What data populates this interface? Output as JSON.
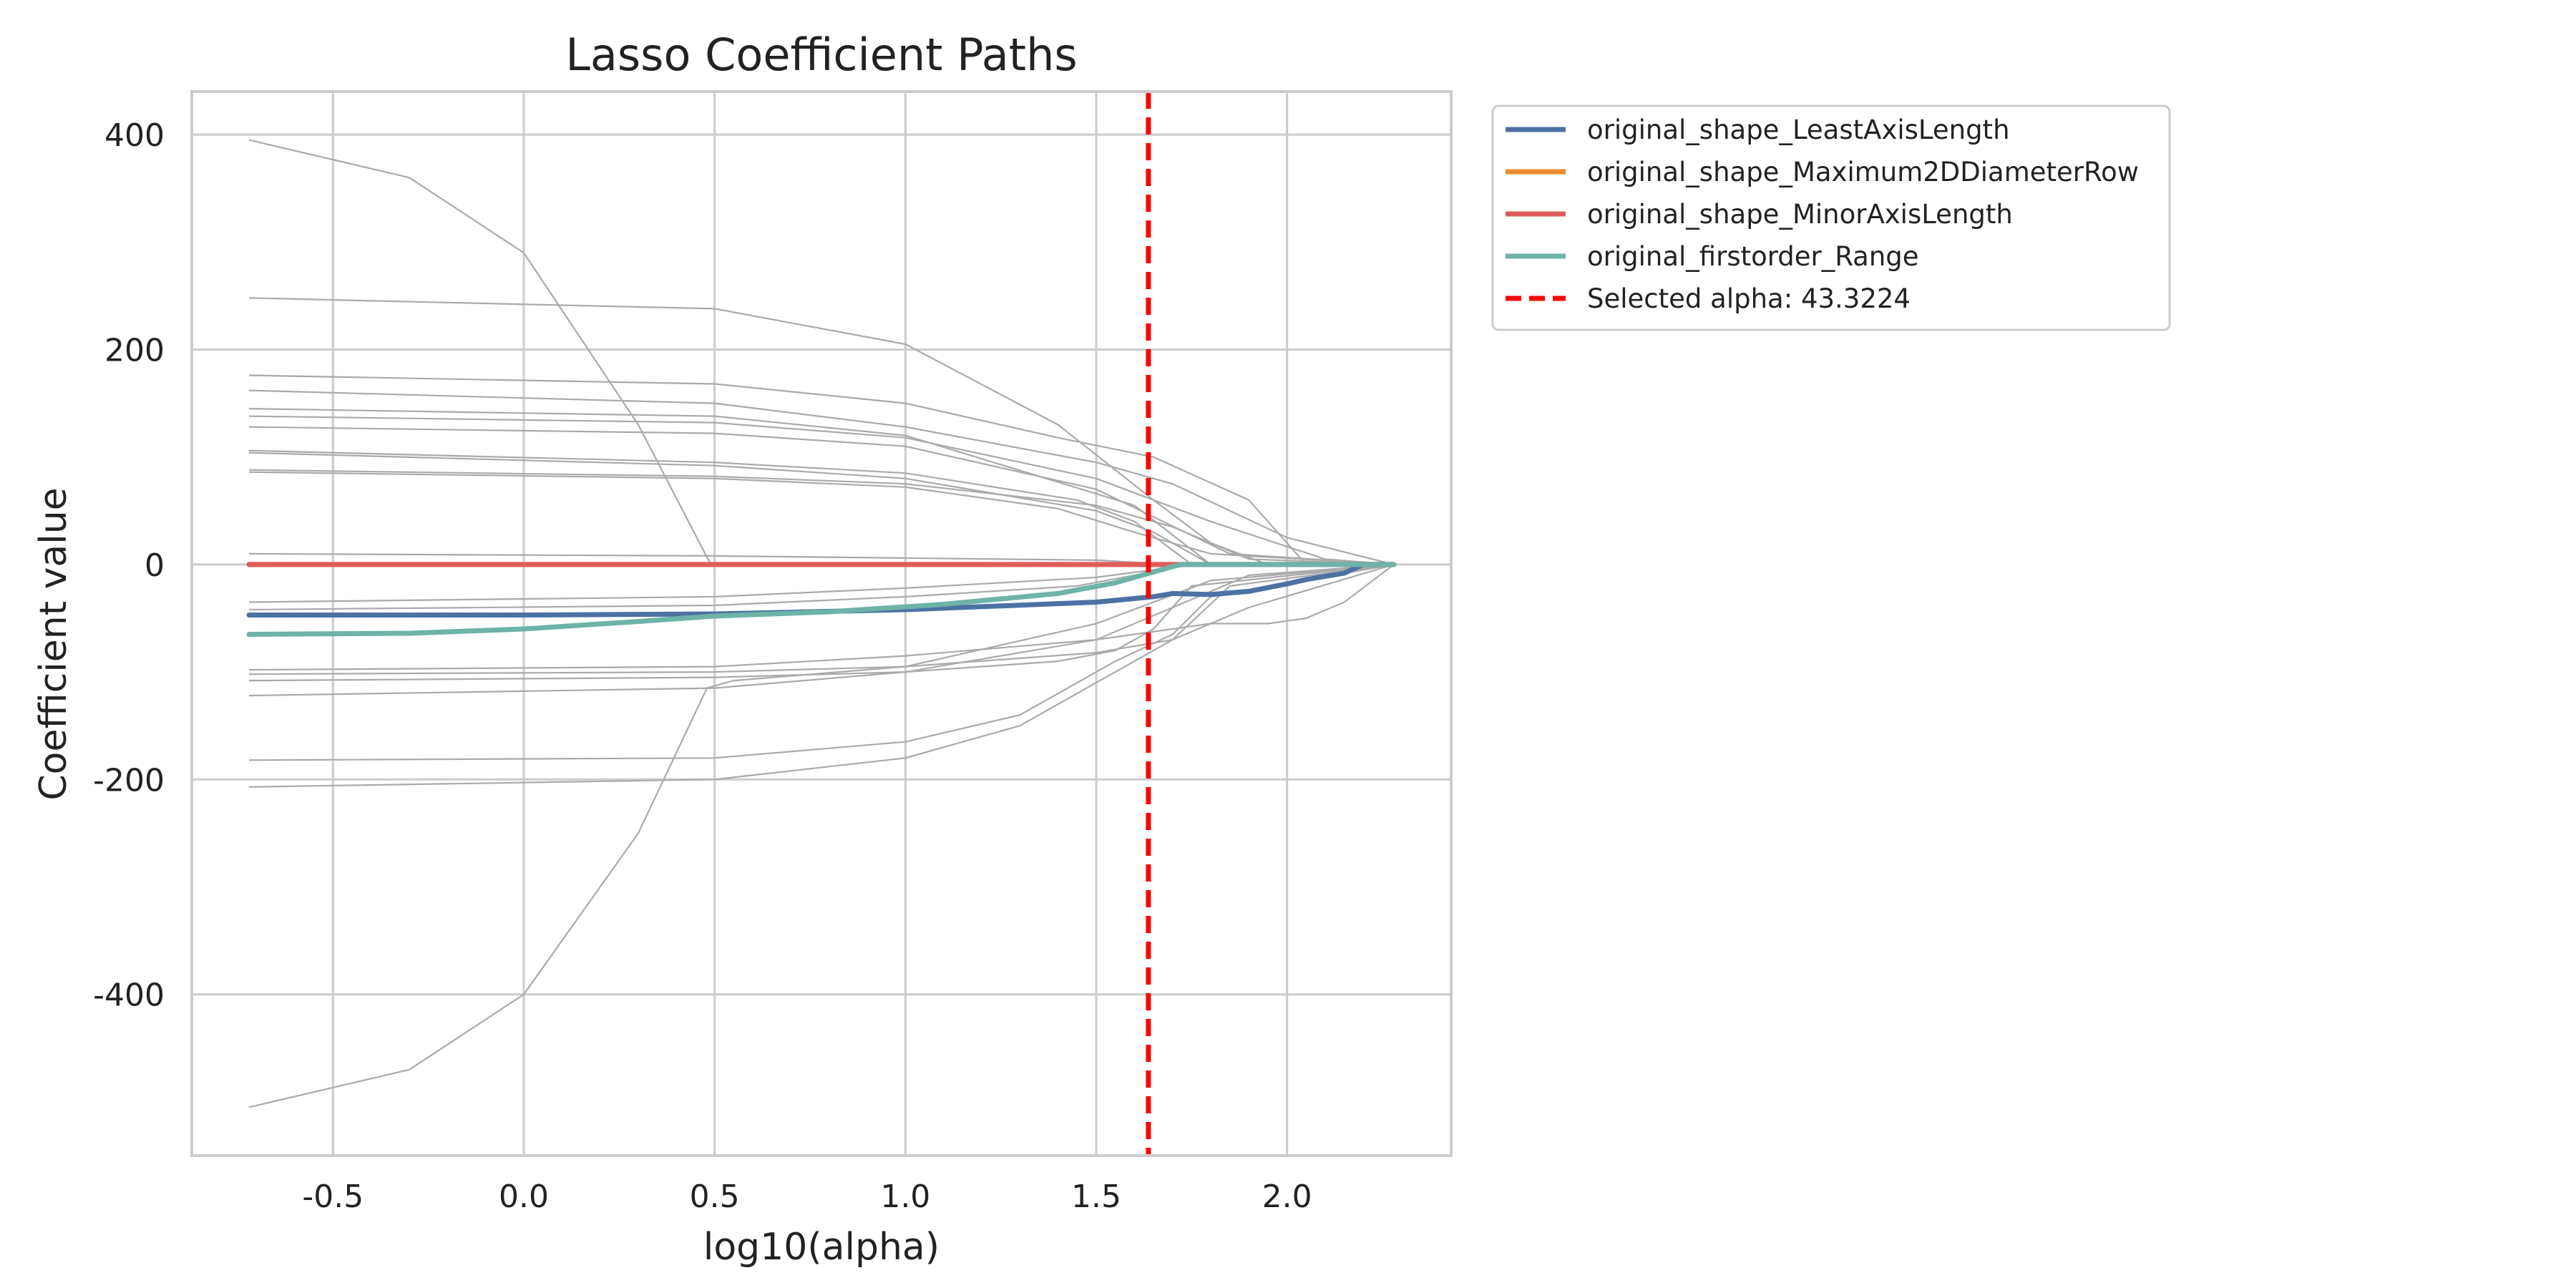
{
  "chart_data": {
    "type": "line",
    "title": "Lasso Coefficient Paths",
    "xlabel": "log10(alpha)",
    "ylabel": "Coefficient value",
    "xlim": [
      -0.87,
      2.43
    ],
    "ylim": [
      -550,
      440
    ],
    "xticks": [
      -0.5,
      0.0,
      0.5,
      1.0,
      1.5,
      2.0
    ],
    "xtick_labels": [
      "-0.5",
      "0.0",
      "0.5",
      "1.0",
      "1.5",
      "2.0"
    ],
    "yticks": [
      400,
      200,
      0,
      -200,
      -400
    ],
    "ytick_labels": [
      "400",
      "200",
      "0",
      "-200",
      "-400"
    ],
    "grid": true,
    "legend_position": "outside-top-right",
    "selected_alpha": {
      "label": "Selected alpha: 43.3224",
      "log10_alpha": 1.6367,
      "color": "#ff0000"
    },
    "series": [
      {
        "name": "original_shape_LeastAxisLength",
        "color": "#4c72a4",
        "highlight": true,
        "x": [
          -0.72,
          0.0,
          0.5,
          1.0,
          1.5,
          1.65,
          1.7,
          1.8,
          1.9,
          2.0,
          2.05,
          2.15,
          2.2,
          2.28
        ],
        "values": [
          -47,
          -47,
          -46,
          -42,
          -35,
          -30,
          -27,
          -28,
          -25,
          -18,
          -14,
          -8,
          0,
          0
        ]
      },
      {
        "name": "original_shape_Maximum2DDiameterRow",
        "color": "#ee8a2e",
        "highlight": true,
        "x": [
          -0.72,
          2.28
        ],
        "values": [
          0,
          0
        ]
      },
      {
        "name": "original_shape_MinorAxisLength",
        "color": "#df5c5c",
        "highlight": true,
        "x": [
          -0.72,
          2.28
        ],
        "values": [
          0,
          0
        ]
      },
      {
        "name": "original_firstorder_Range",
        "color": "#6db3a8",
        "highlight": true,
        "x": [
          -0.72,
          -0.3,
          0.0,
          0.3,
          0.5,
          0.8,
          1.1,
          1.4,
          1.55,
          1.65,
          1.72,
          2.28
        ],
        "values": [
          -65,
          -64,
          -60,
          -53,
          -48,
          -44,
          -37,
          -27,
          -17,
          -7,
          0,
          0
        ]
      }
    ],
    "background_paths": [
      {
        "x": [
          -0.72,
          -0.3,
          0.0,
          0.3,
          0.49,
          2.28
        ],
        "values": [
          395,
          360,
          290,
          130,
          0,
          0
        ]
      },
      {
        "x": [
          -0.72,
          -0.3,
          0.0,
          0.3,
          0.48,
          0.55,
          1.0,
          1.5,
          1.8,
          2.28
        ],
        "values": [
          -505,
          -470,
          -400,
          -250,
          -115,
          -108,
          -95,
          -55,
          -15,
          0
        ]
      },
      {
        "x": [
          -0.72,
          0.5,
          1.0,
          1.4,
          1.65,
          1.8,
          1.95,
          2.28
        ],
        "values": [
          248,
          238,
          205,
          130,
          60,
          20,
          0,
          0
        ]
      },
      {
        "x": [
          -0.72,
          0.5,
          1.0,
          1.4,
          1.65,
          1.9,
          2.05,
          2.28
        ],
        "values": [
          176,
          168,
          150,
          118,
          100,
          60,
          0,
          0
        ]
      },
      {
        "x": [
          -0.72,
          0.5,
          1.0,
          1.5,
          1.7,
          2.0,
          2.28
        ],
        "values": [
          162,
          150,
          128,
          95,
          75,
          25,
          0
        ]
      },
      {
        "x": [
          -0.72,
          0.5,
          1.0,
          1.6,
          1.8,
          2.28
        ],
        "values": [
          145,
          138,
          120,
          55,
          0,
          0
        ]
      },
      {
        "x": [
          -0.72,
          0.5,
          1.0,
          1.5,
          1.8,
          2.1,
          2.28
        ],
        "values": [
          138,
          132,
          118,
          80,
          40,
          5,
          0
        ]
      },
      {
        "x": [
          -0.72,
          0.5,
          1.0,
          1.5,
          1.85,
          2.28
        ],
        "values": [
          128,
          122,
          110,
          70,
          10,
          0
        ]
      },
      {
        "x": [
          -0.72,
          0.5,
          1.0,
          1.45,
          1.6,
          1.75,
          2.28
        ],
        "values": [
          106,
          95,
          85,
          60,
          40,
          0,
          0
        ]
      },
      {
        "x": [
          -0.72,
          0.5,
          1.0,
          1.5,
          1.65,
          1.8,
          2.28
        ],
        "values": [
          104,
          92,
          80,
          50,
          30,
          0,
          0
        ]
      },
      {
        "x": [
          -0.72,
          0.5,
          1.0,
          1.5,
          1.7,
          1.9,
          2.28
        ],
        "values": [
          88,
          82,
          75,
          55,
          35,
          5,
          0
        ]
      },
      {
        "x": [
          -0.72,
          0.5,
          1.0,
          1.4,
          1.6,
          1.8,
          2.28
        ],
        "values": [
          86,
          80,
          72,
          52,
          30,
          10,
          0
        ]
      },
      {
        "x": [
          -0.72,
          0.5,
          1.0,
          1.5,
          1.7,
          2.28
        ],
        "values": [
          10,
          8,
          6,
          4,
          0,
          0
        ]
      },
      {
        "x": [
          -0.72,
          0.5,
          1.0,
          1.5,
          1.65,
          1.75,
          2.28
        ],
        "values": [
          -35,
          -30,
          -22,
          -12,
          -5,
          0,
          0
        ]
      },
      {
        "x": [
          -0.72,
          0.5,
          1.0,
          1.45,
          1.6,
          1.75,
          2.28
        ],
        "values": [
          -42,
          -38,
          -30,
          -20,
          -10,
          0,
          0
        ]
      },
      {
        "x": [
          -0.72,
          0.5,
          1.0,
          1.5,
          1.8,
          1.95,
          2.05,
          2.15,
          2.28
        ],
        "values": [
          -98,
          -95,
          -85,
          -70,
          -55,
          -55,
          -50,
          -35,
          0
        ]
      },
      {
        "x": [
          -0.72,
          0.5,
          1.0,
          1.5,
          1.7,
          1.9,
          2.28
        ],
        "values": [
          -102,
          -100,
          -95,
          -82,
          -70,
          -40,
          0
        ]
      },
      {
        "x": [
          -0.72,
          0.5,
          1.0,
          1.4,
          1.55,
          1.65,
          1.75,
          2.28
        ],
        "values": [
          -108,
          -105,
          -100,
          -90,
          -80,
          -60,
          -20,
          0
        ]
      },
      {
        "x": [
          -0.72,
          0.5,
          1.0,
          1.5,
          1.7,
          1.9,
          2.28
        ],
        "values": [
          -122,
          -115,
          -100,
          -70,
          -40,
          -10,
          0
        ]
      },
      {
        "x": [
          -0.72,
          0.5,
          1.0,
          1.3,
          1.55,
          1.7,
          1.8,
          2.28
        ],
        "values": [
          -182,
          -180,
          -165,
          -140,
          -90,
          -65,
          -30,
          0
        ]
      },
      {
        "x": [
          -0.72,
          0.5,
          1.0,
          1.3,
          1.5,
          1.7,
          1.85,
          2.28
        ],
        "values": [
          -207,
          -200,
          -180,
          -150,
          -110,
          -70,
          -20,
          0
        ]
      }
    ]
  }
}
